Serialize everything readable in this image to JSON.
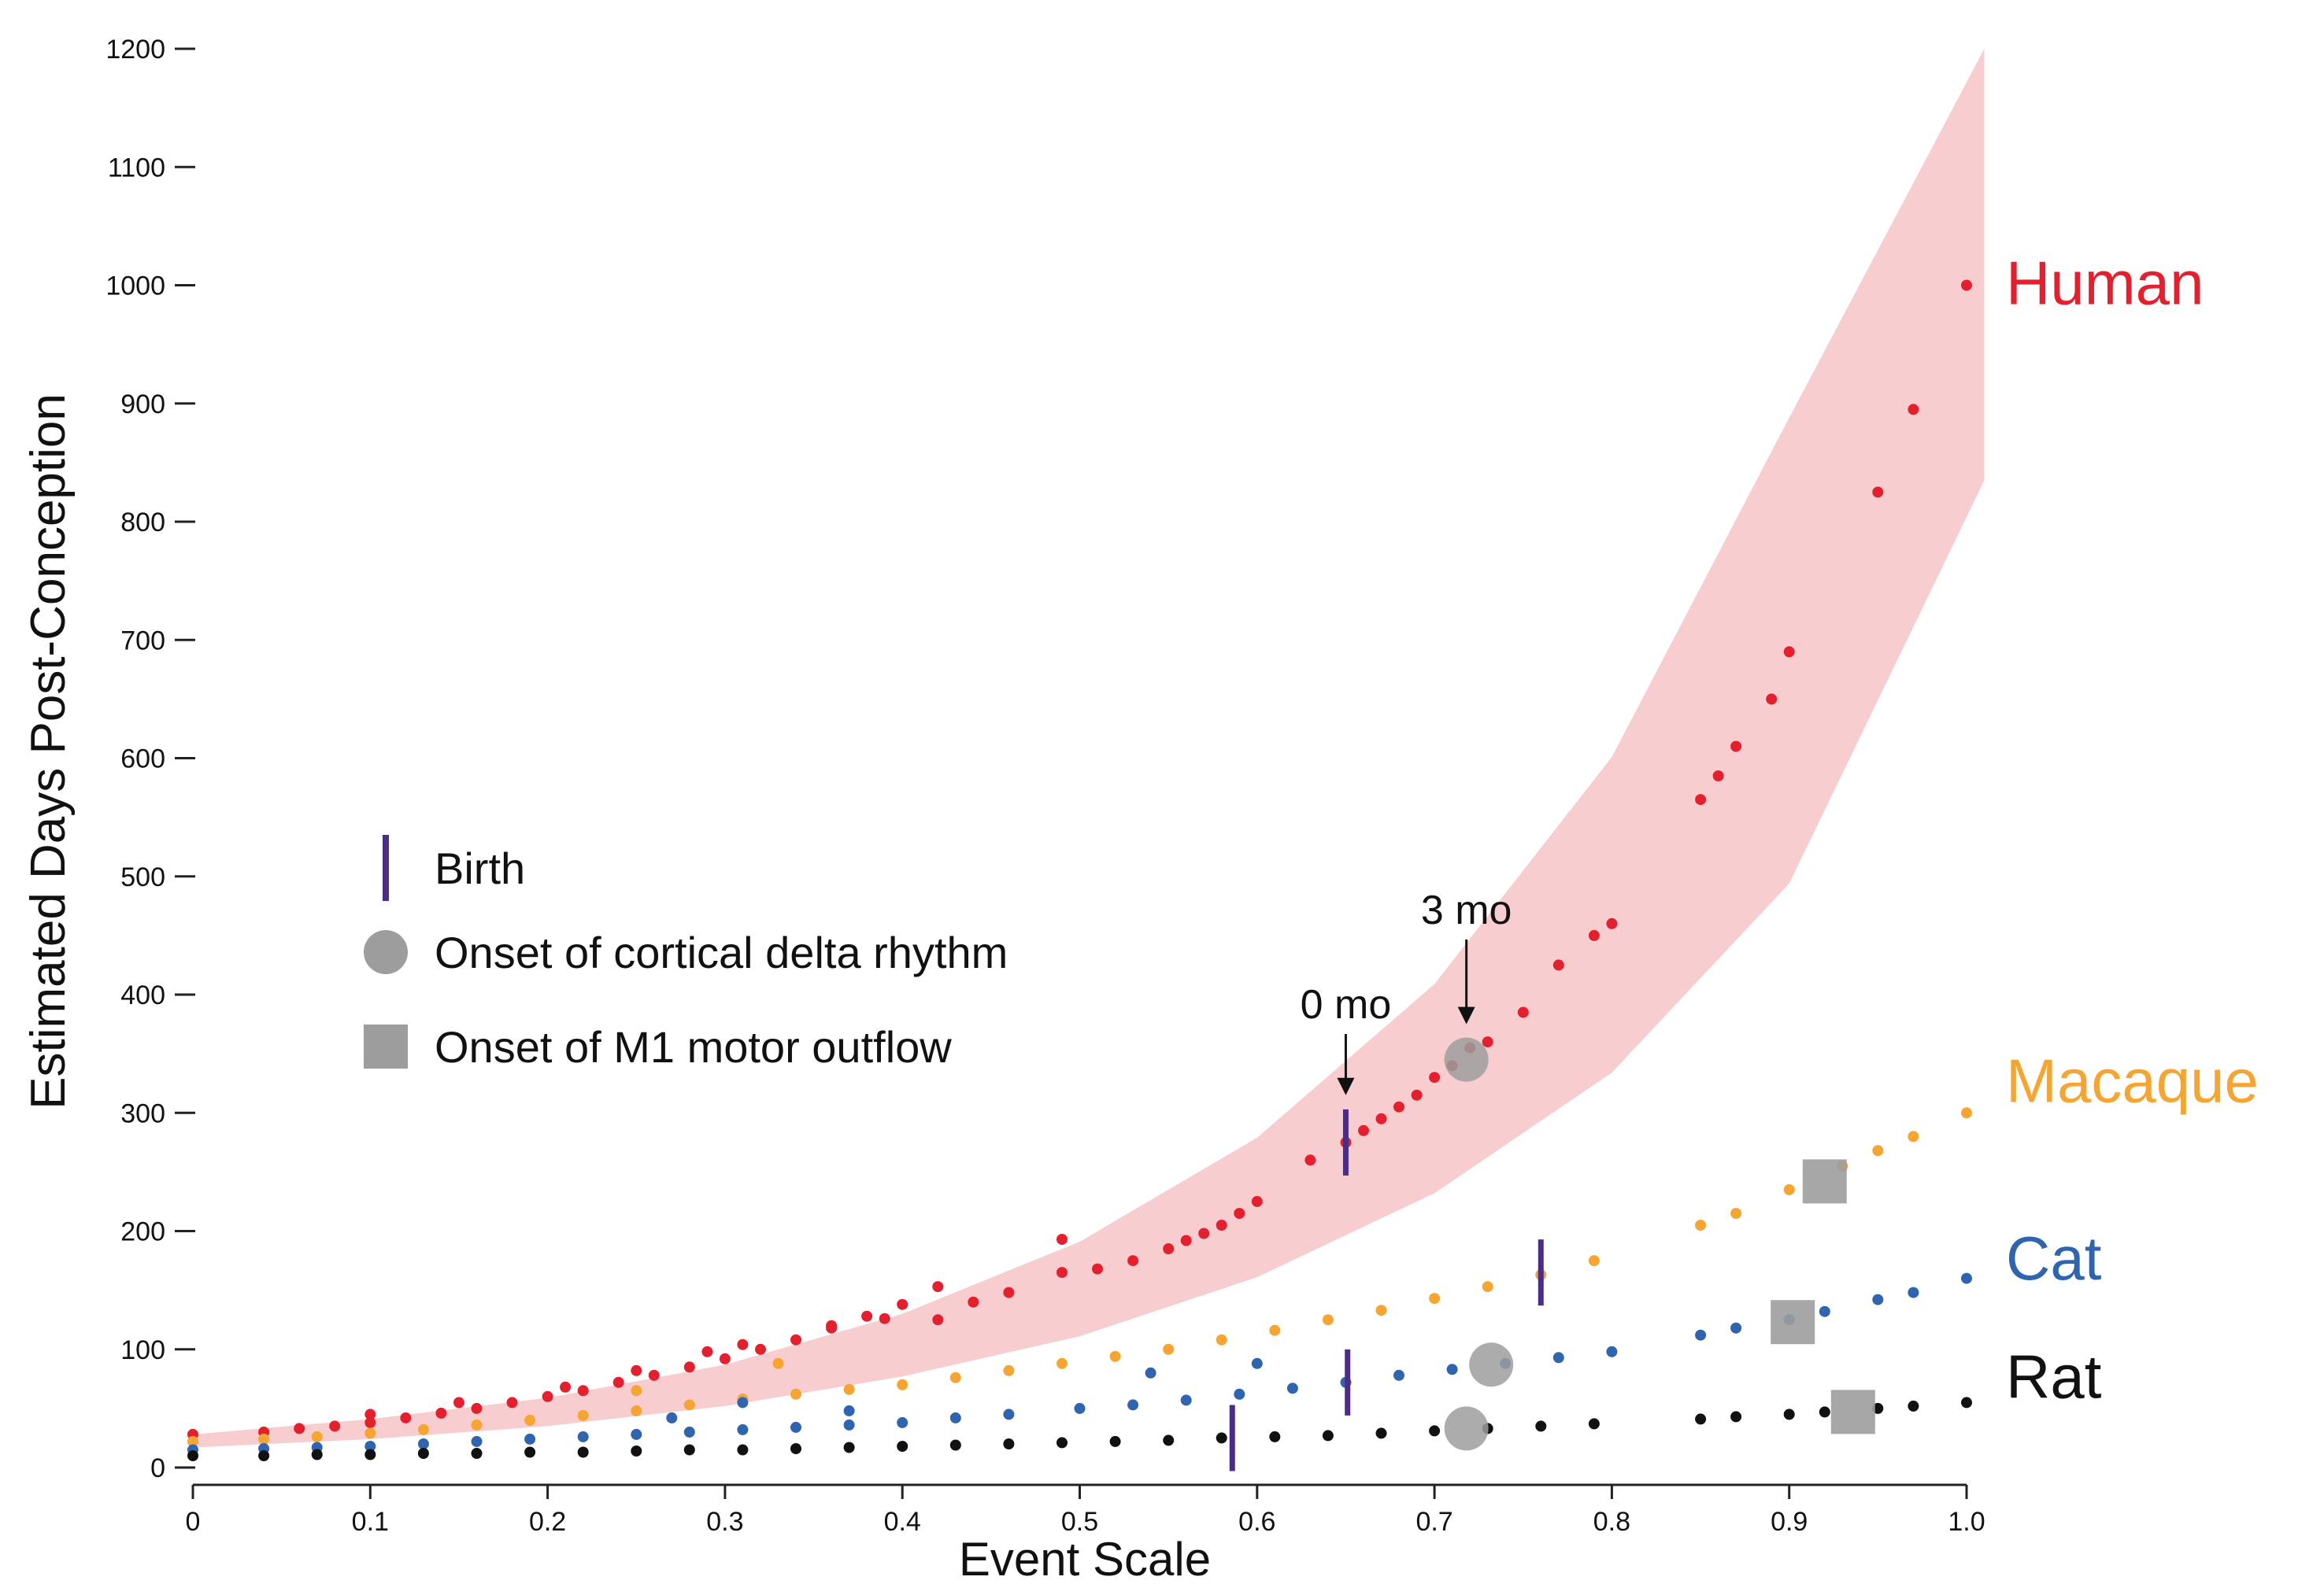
{
  "chart_data": {
    "type": "scatter",
    "title": "",
    "xlabel": "Event Scale",
    "ylabel": "Estimated Days Post-Conception",
    "xlim": [
      0,
      1.0
    ],
    "ylim": [
      0,
      1200
    ],
    "xticks": [
      0,
      0.1,
      0.2,
      0.3,
      0.4,
      0.5,
      0.6,
      0.7,
      0.8,
      0.9,
      1.0
    ],
    "xtick_labels": [
      "0",
      "0.1",
      "0.2",
      "0.3",
      "0.4",
      "0.5",
      "0.6",
      "0.7",
      "0.8",
      "0.9",
      "1.0"
    ],
    "yticks": [
      0,
      100,
      200,
      300,
      400,
      500,
      600,
      700,
      800,
      900,
      1000,
      1100,
      1200
    ],
    "ytick_labels": [
      "0",
      "100",
      "200",
      "300",
      "400",
      "500",
      "600",
      "700",
      "800",
      "900",
      "1000",
      "1100",
      "1200"
    ],
    "grid": false,
    "confidence_band": {
      "series": "Human",
      "color": "#f7cdd0",
      "x": [
        0,
        0.1,
        0.2,
        0.3,
        0.4,
        0.5,
        0.6,
        0.7,
        0.8,
        0.9,
        1.01
      ],
      "lower": [
        17,
        24,
        35,
        52,
        77,
        111,
        161,
        232,
        334,
        494,
        835
      ],
      "upper": [
        28,
        41,
        59,
        87,
        130,
        191,
        279,
        409,
        601,
        888,
        1200
      ]
    },
    "series": [
      {
        "name": "Human",
        "color": "#e5202e",
        "x": [
          0,
          0.04,
          0.06,
          0.08,
          0.1,
          0.12,
          0.14,
          0.16,
          0.18,
          0.2,
          0.22,
          0.24,
          0.26,
          0.28,
          0.3,
          0.32,
          0.34,
          0.36,
          0.38,
          0.4,
          0.42,
          0.44,
          0.46,
          0.49,
          0.51,
          0.53,
          0.55,
          0.56,
          0.57,
          0.58,
          0.59,
          0.6,
          0.63,
          0.65,
          0.66,
          0.67,
          0.68,
          0.69,
          0.7,
          0.71,
          0.72,
          0.73,
          0.75,
          0.77,
          0.79,
          0.8,
          0.85,
          0.86,
          0.87,
          0.89,
          0.9,
          0.95,
          0.97,
          1.0,
          0.1,
          0.15,
          0.21,
          0.25,
          0.29,
          0.31,
          0.36,
          0.39,
          0.42,
          0.49
        ],
        "y": [
          28,
          30,
          33,
          35,
          38,
          42,
          46,
          50,
          55,
          60,
          65,
          72,
          78,
          85,
          92,
          100,
          108,
          118,
          128,
          138,
          125,
          140,
          148,
          165,
          168,
          175,
          185,
          192,
          198,
          205,
          215,
          225,
          260,
          275,
          285,
          295,
          305,
          315,
          330,
          340,
          355,
          360,
          385,
          425,
          450,
          460,
          565,
          585,
          610,
          650,
          690,
          825,
          895,
          1000,
          45,
          55,
          68,
          82,
          98,
          104,
          120,
          126,
          153,
          193
        ]
      },
      {
        "name": "Macaque",
        "color": "#f6a532",
        "x": [
          0,
          0.04,
          0.07,
          0.1,
          0.13,
          0.16,
          0.19,
          0.22,
          0.25,
          0.28,
          0.31,
          0.34,
          0.37,
          0.4,
          0.43,
          0.46,
          0.49,
          0.52,
          0.55,
          0.58,
          0.61,
          0.64,
          0.67,
          0.7,
          0.73,
          0.76,
          0.79,
          0.85,
          0.87,
          0.9,
          0.93,
          0.95,
          0.97,
          1.0,
          0.25,
          0.33
        ],
        "y": [
          22,
          24,
          26,
          29,
          32,
          36,
          40,
          44,
          48,
          53,
          58,
          62,
          66,
          70,
          76,
          82,
          88,
          94,
          100,
          108,
          116,
          125,
          133,
          143,
          153,
          163,
          175,
          205,
          215,
          235,
          255,
          268,
          280,
          300,
          65,
          88
        ]
      },
      {
        "name": "Cat",
        "color": "#2f64b0",
        "x": [
          0,
          0.04,
          0.07,
          0.1,
          0.13,
          0.16,
          0.19,
          0.22,
          0.25,
          0.28,
          0.31,
          0.34,
          0.37,
          0.4,
          0.43,
          0.46,
          0.5,
          0.53,
          0.56,
          0.59,
          0.62,
          0.65,
          0.68,
          0.71,
          0.74,
          0.77,
          0.8,
          0.85,
          0.87,
          0.9,
          0.92,
          0.95,
          0.97,
          1.0,
          0.27,
          0.31,
          0.37,
          0.54,
          0.6
        ],
        "y": [
          15,
          16,
          17,
          18,
          20,
          22,
          24,
          26,
          28,
          30,
          32,
          34,
          36,
          38,
          42,
          45,
          50,
          53,
          57,
          62,
          67,
          72,
          78,
          83,
          88,
          93,
          98,
          112,
          118,
          125,
          132,
          142,
          148,
          160,
          42,
          55,
          48,
          80,
          88
        ]
      },
      {
        "name": "Rat",
        "color": "#111111",
        "x": [
          0,
          0.04,
          0.07,
          0.1,
          0.13,
          0.16,
          0.19,
          0.22,
          0.25,
          0.28,
          0.31,
          0.34,
          0.37,
          0.4,
          0.43,
          0.46,
          0.49,
          0.52,
          0.55,
          0.58,
          0.61,
          0.64,
          0.67,
          0.7,
          0.73,
          0.76,
          0.79,
          0.85,
          0.87,
          0.9,
          0.92,
          0.95,
          0.97,
          1.0
        ],
        "y": [
          10,
          10,
          11,
          11,
          12,
          12,
          13,
          13,
          14,
          15,
          15,
          16,
          17,
          18,
          19,
          20,
          21,
          22,
          23,
          25,
          26,
          27,
          29,
          31,
          33,
          35,
          37,
          41,
          43,
          45,
          47,
          50,
          52,
          55
        ]
      }
    ],
    "series_labels": [
      {
        "name": "Human",
        "text": "Human",
        "anchor_y": 1000
      },
      {
        "name": "Macaque",
        "text": "Macaque",
        "anchor_y": 325
      },
      {
        "name": "Cat",
        "text": "Cat",
        "anchor_y": 175
      },
      {
        "name": "Rat",
        "text": "Rat",
        "anchor_y": 75
      }
    ],
    "birth_markers": [
      {
        "series": "Human",
        "x": 0.65,
        "y": 275
      },
      {
        "series": "Macaque",
        "x": 0.76,
        "y": 165
      },
      {
        "series": "Cat",
        "x": 0.651,
        "y": 72
      },
      {
        "series": "Rat",
        "x": 0.586,
        "y": 25
      }
    ],
    "delta_onset_markers": [
      {
        "series": "Human",
        "x": 0.718,
        "y": 345
      },
      {
        "series": "Cat",
        "x": 0.732,
        "y": 87
      },
      {
        "series": "Rat",
        "x": 0.718,
        "y": 33
      }
    ],
    "m1_onset_markers": [
      {
        "series": "Macaque",
        "x": 0.92,
        "y": 242
      },
      {
        "series": "Cat",
        "x": 0.902,
        "y": 123
      },
      {
        "series": "Rat",
        "x": 0.936,
        "y": 47
      }
    ],
    "annotations": [
      {
        "text": "0 mo",
        "x": 0.65,
        "y": 380,
        "arrow_to_y": 315
      },
      {
        "text": "3 mo",
        "x": 0.718,
        "y": 460,
        "arrow_to_y": 375
      }
    ],
    "legend": {
      "placement": "middle-left",
      "items": [
        {
          "marker": "line",
          "label": "Birth"
        },
        {
          "marker": "circle",
          "label": "Onset of cortical delta rhythm"
        },
        {
          "marker": "square",
          "label": "Onset of M1 motor outflow"
        }
      ]
    },
    "colors": {
      "birth": "#4b2d86",
      "marker_gray": "#9d9d9d",
      "band": "#f7cdd0"
    }
  }
}
